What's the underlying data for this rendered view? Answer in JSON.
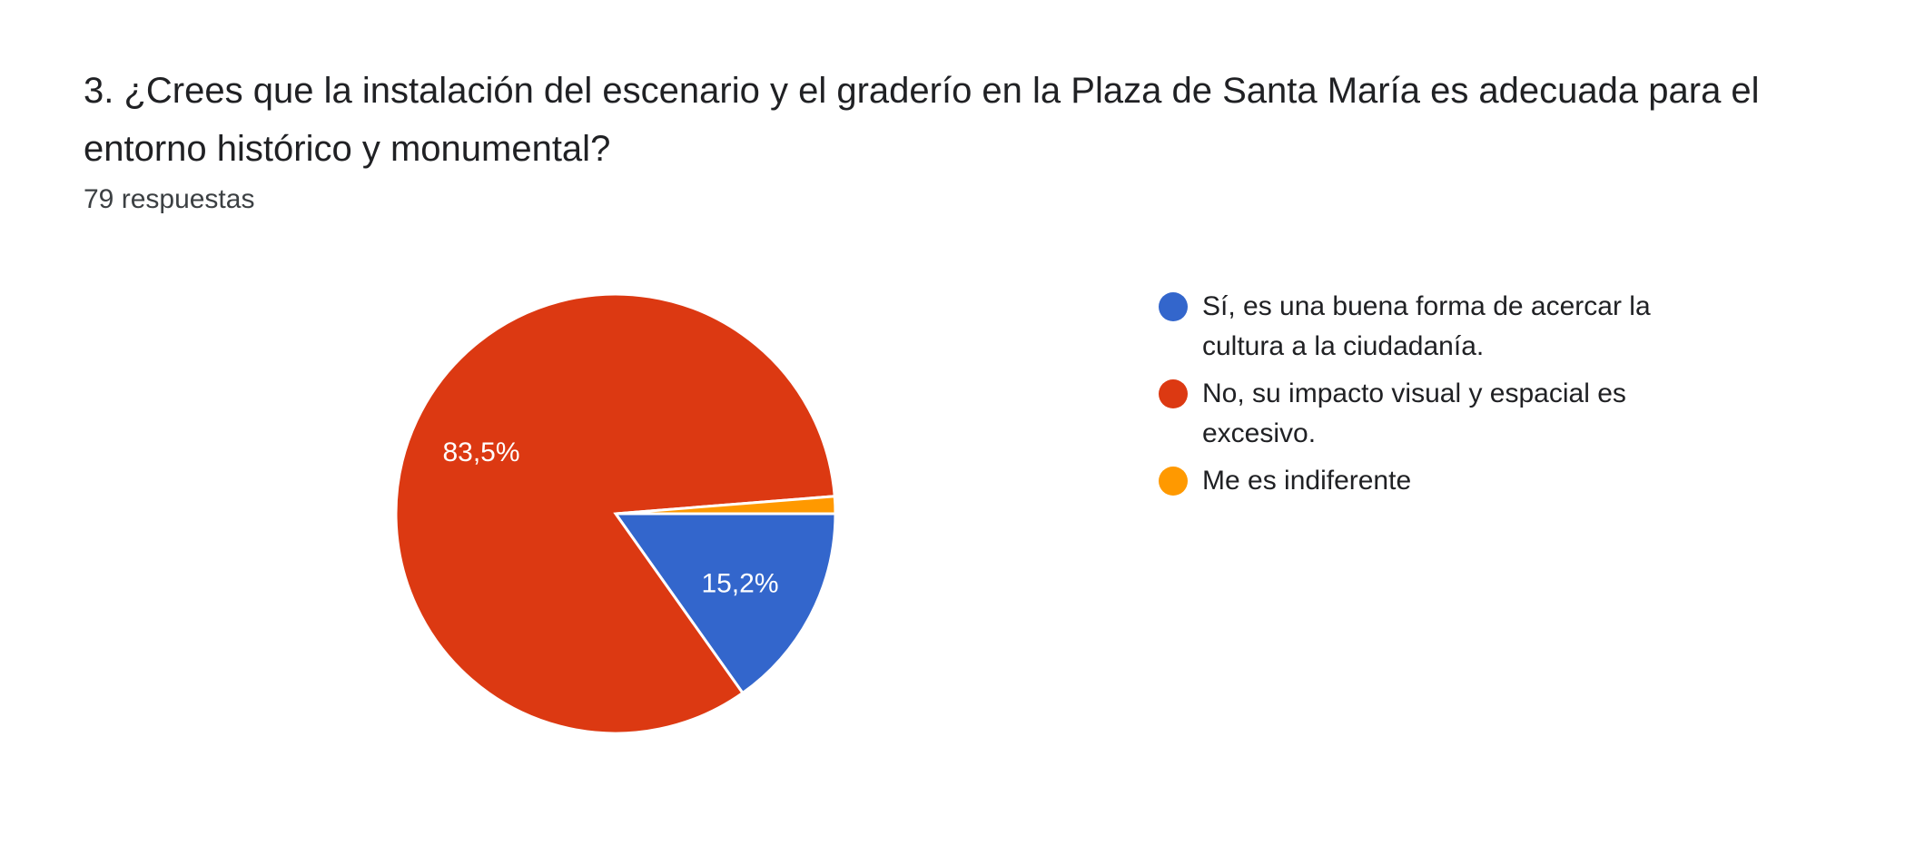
{
  "question": {
    "title": "3. ¿Crees que la instalación del escenario y el graderío en la Plaza de Santa María es adecuada para el entorno histórico y monumental?",
    "response_count": "79 respuestas"
  },
  "chart_data": {
    "type": "pie",
    "total_responses": 79,
    "slices": [
      {
        "name": "Sí, es una buena forma de acercar la cultura a la ciudadanía.",
        "value": 12,
        "percent": 15.2,
        "label": "15,2%",
        "color": "#3366cc"
      },
      {
        "name": "No, su impacto visual y espacial es excesivo.",
        "value": 66,
        "percent": 83.5,
        "label": "83,5%",
        "color": "#dc3912"
      },
      {
        "name": "Me es indiferente",
        "value": 1,
        "percent": 1.3,
        "label": "",
        "color": "#ff9900"
      }
    ],
    "legend_position": "right",
    "start_angle": "3 o'clock",
    "direction": "clockwise"
  }
}
